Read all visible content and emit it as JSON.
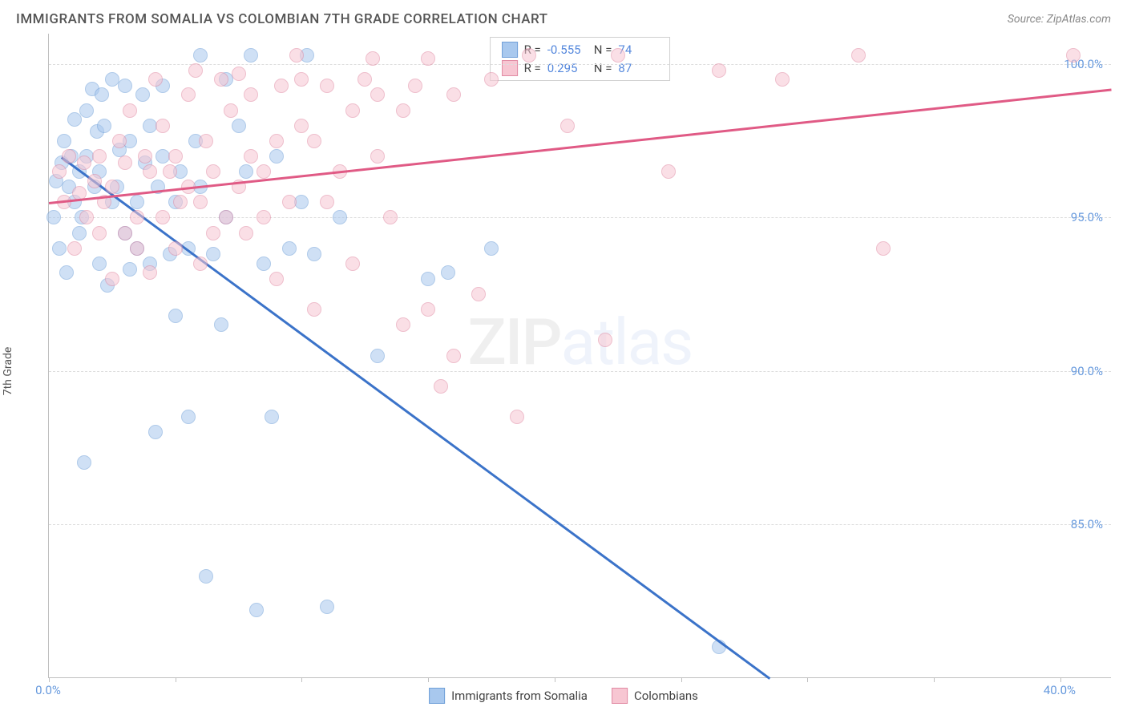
{
  "chart": {
    "type": "scatter",
    "title": "IMMIGRANTS FROM SOMALIA VS COLOMBIAN 7TH GRADE CORRELATION CHART",
    "source_label": "Source: ",
    "source_name": "ZipAtlas.com",
    "ylabel": "7th Grade",
    "background_color": "#ffffff",
    "grid_color": "#dddddd",
    "axis_color": "#c0c0c0",
    "tick_label_color": "#6699dd",
    "text_color": "#555555",
    "title_fontsize": 17,
    "label_fontsize": 14,
    "tick_fontsize": 15,
    "xlim": [
      0,
      42
    ],
    "ylim": [
      80,
      101
    ],
    "ytick_values": [
      85.0,
      90.0,
      95.0,
      100.0
    ],
    "ytick_labels": [
      "85.0%",
      "90.0%",
      "95.0%",
      "100.0%"
    ],
    "xtick_values": [
      0,
      5,
      10,
      15,
      20,
      25,
      30,
      35,
      40
    ],
    "xtick_visible_labels": {
      "0": "0.0%",
      "40": "40.0%"
    },
    "watermark": {
      "part1": "ZIP",
      "part2": "atlas"
    },
    "series": [
      {
        "name": "Immigrants from Somalia",
        "key": "somalia",
        "r": -0.555,
        "n": 74,
        "marker_fill": "#a8c8ee",
        "marker_stroke": "#6f9fd8",
        "line_color": "#3b73c9",
        "marker_size": 18,
        "line_width": 2.5,
        "trend": {
          "x1": 0.5,
          "y1": 97.0,
          "x2": 28.5,
          "y2": 80.0
        },
        "points": [
          [
            0.2,
            95.0
          ],
          [
            0.3,
            96.2
          ],
          [
            0.4,
            94.0
          ],
          [
            0.5,
            96.8
          ],
          [
            0.6,
            97.5
          ],
          [
            0.7,
            93.2
          ],
          [
            0.8,
            96.0
          ],
          [
            0.9,
            97.0
          ],
          [
            1.0,
            98.2
          ],
          [
            1.0,
            95.5
          ],
          [
            1.2,
            96.5
          ],
          [
            1.2,
            94.5
          ],
          [
            1.3,
            95.0
          ],
          [
            1.4,
            87.0
          ],
          [
            1.5,
            98.5
          ],
          [
            1.5,
            97.0
          ],
          [
            1.7,
            99.2
          ],
          [
            1.8,
            96.0
          ],
          [
            1.9,
            97.8
          ],
          [
            2.0,
            96.5
          ],
          [
            2.0,
            93.5
          ],
          [
            2.1,
            99.0
          ],
          [
            2.2,
            98.0
          ],
          [
            2.3,
            92.8
          ],
          [
            2.5,
            95.5
          ],
          [
            2.5,
            99.5
          ],
          [
            2.7,
            96.0
          ],
          [
            2.8,
            97.2
          ],
          [
            3.0,
            99.3
          ],
          [
            3.0,
            94.5
          ],
          [
            3.2,
            93.3
          ],
          [
            3.2,
            97.5
          ],
          [
            3.5,
            94.0
          ],
          [
            3.5,
            95.5
          ],
          [
            3.7,
            99.0
          ],
          [
            3.8,
            96.8
          ],
          [
            4.0,
            98.0
          ],
          [
            4.0,
            93.5
          ],
          [
            4.2,
            88.0
          ],
          [
            4.3,
            96.0
          ],
          [
            4.5,
            99.3
          ],
          [
            4.5,
            97.0
          ],
          [
            4.8,
            93.8
          ],
          [
            5.0,
            91.8
          ],
          [
            5.0,
            95.5
          ],
          [
            5.2,
            96.5
          ],
          [
            5.5,
            94.0
          ],
          [
            5.5,
            88.5
          ],
          [
            5.8,
            97.5
          ],
          [
            6.0,
            100.3
          ],
          [
            6.0,
            96.0
          ],
          [
            6.2,
            83.3
          ],
          [
            6.5,
            93.8
          ],
          [
            6.8,
            91.5
          ],
          [
            7.0,
            99.5
          ],
          [
            7.0,
            95.0
          ],
          [
            7.5,
            98.0
          ],
          [
            7.8,
            96.5
          ],
          [
            8.0,
            100.3
          ],
          [
            8.2,
            82.2
          ],
          [
            8.5,
            93.5
          ],
          [
            8.8,
            88.5
          ],
          [
            9.0,
            97.0
          ],
          [
            9.5,
            94.0
          ],
          [
            10.0,
            95.5
          ],
          [
            10.2,
            100.3
          ],
          [
            10.5,
            93.8
          ],
          [
            11.0,
            82.3
          ],
          [
            11.5,
            95.0
          ],
          [
            13.0,
            90.5
          ],
          [
            15.0,
            93.0
          ],
          [
            15.8,
            93.2
          ],
          [
            17.5,
            94.0
          ],
          [
            26.5,
            81.0
          ]
        ]
      },
      {
        "name": "Colombians",
        "key": "colombians",
        "r": 0.295,
        "n": 87,
        "marker_fill": "#f7c6d2",
        "marker_stroke": "#e18aa3",
        "line_color": "#e05a85",
        "marker_size": 18,
        "line_width": 2.5,
        "trend": {
          "x1": 0.0,
          "y1": 95.5,
          "x2": 42.0,
          "y2": 99.2
        },
        "points": [
          [
            0.4,
            96.5
          ],
          [
            0.6,
            95.5
          ],
          [
            0.8,
            97.0
          ],
          [
            1.0,
            94.0
          ],
          [
            1.2,
            95.8
          ],
          [
            1.4,
            96.8
          ],
          [
            1.5,
            95.0
          ],
          [
            1.8,
            96.2
          ],
          [
            2.0,
            94.5
          ],
          [
            2.0,
            97.0
          ],
          [
            2.2,
            95.5
          ],
          [
            2.5,
            93.0
          ],
          [
            2.5,
            96.0
          ],
          [
            2.8,
            97.5
          ],
          [
            3.0,
            94.5
          ],
          [
            3.0,
            96.8
          ],
          [
            3.2,
            98.5
          ],
          [
            3.5,
            95.0
          ],
          [
            3.5,
            94.0
          ],
          [
            3.8,
            97.0
          ],
          [
            4.0,
            93.2
          ],
          [
            4.0,
            96.5
          ],
          [
            4.2,
            99.5
          ],
          [
            4.5,
            95.0
          ],
          [
            4.5,
            98.0
          ],
          [
            4.8,
            96.5
          ],
          [
            5.0,
            94.0
          ],
          [
            5.0,
            97.0
          ],
          [
            5.2,
            95.5
          ],
          [
            5.5,
            99.0
          ],
          [
            5.5,
            96.0
          ],
          [
            5.8,
            99.8
          ],
          [
            6.0,
            95.5
          ],
          [
            6.0,
            93.5
          ],
          [
            6.2,
            97.5
          ],
          [
            6.5,
            94.5
          ],
          [
            6.5,
            96.5
          ],
          [
            6.8,
            99.5
          ],
          [
            7.0,
            95.0
          ],
          [
            7.2,
            98.5
          ],
          [
            7.5,
            99.7
          ],
          [
            7.5,
            96.0
          ],
          [
            7.8,
            94.5
          ],
          [
            8.0,
            97.0
          ],
          [
            8.0,
            99.0
          ],
          [
            8.5,
            96.5
          ],
          [
            8.5,
            95.0
          ],
          [
            9.0,
            93.0
          ],
          [
            9.0,
            97.5
          ],
          [
            9.2,
            99.3
          ],
          [
            9.5,
            95.5
          ],
          [
            9.8,
            100.3
          ],
          [
            10.0,
            98.0
          ],
          [
            10.0,
            99.5
          ],
          [
            10.5,
            97.5
          ],
          [
            10.5,
            92.0
          ],
          [
            11.0,
            99.3
          ],
          [
            11.0,
            95.5
          ],
          [
            11.5,
            96.5
          ],
          [
            12.0,
            98.5
          ],
          [
            12.0,
            93.5
          ],
          [
            12.5,
            99.5
          ],
          [
            12.8,
            100.2
          ],
          [
            13.0,
            97.0
          ],
          [
            13.0,
            99.0
          ],
          [
            13.5,
            95.0
          ],
          [
            14.0,
            91.5
          ],
          [
            14.0,
            98.5
          ],
          [
            14.5,
            99.3
          ],
          [
            15.0,
            92.0
          ],
          [
            15.0,
            100.2
          ],
          [
            15.5,
            89.5
          ],
          [
            16.0,
            90.5
          ],
          [
            16.0,
            99.0
          ],
          [
            17.0,
            92.5
          ],
          [
            17.5,
            99.5
          ],
          [
            18.5,
            88.5
          ],
          [
            19.0,
            100.3
          ],
          [
            20.5,
            98.0
          ],
          [
            22.0,
            91.0
          ],
          [
            22.5,
            100.3
          ],
          [
            24.5,
            96.5
          ],
          [
            26.5,
            99.8
          ],
          [
            29.0,
            99.5
          ],
          [
            32.0,
            100.3
          ],
          [
            33.0,
            94.0
          ],
          [
            40.5,
            100.3
          ]
        ]
      }
    ],
    "legend": {
      "r_label": "R =",
      "n_label": "N ="
    },
    "bottom_legend": [
      {
        "key": "somalia",
        "label": "Immigrants from Somalia"
      },
      {
        "key": "colombians",
        "label": "Colombians"
      }
    ]
  }
}
